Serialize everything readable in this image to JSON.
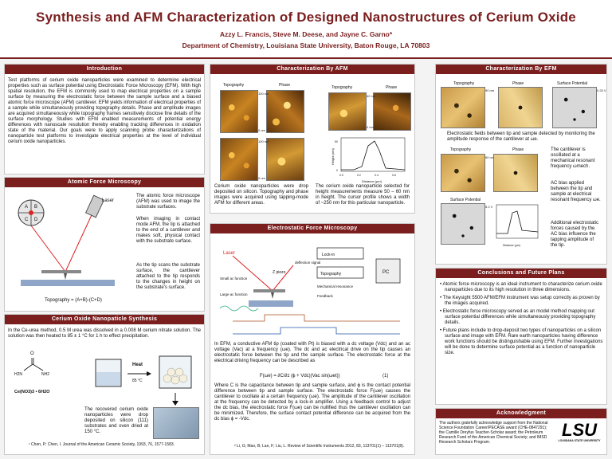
{
  "header": {
    "title": "Synthesis and AFM Characterization of Designed Nanostructures of Cerium Oxide",
    "authors": "Azzy L. Francis, Steve M. Deese, and Jayne C. Garno*",
    "affiliation": "Department of Chemistry, Louisiana State University, Baton Rouge, LA 70803"
  },
  "intro": {
    "heading": "Introduction",
    "body": "Test platforms of cerium oxide nanoparticles were examined to determine electrical properties such as surface potential using Electrostatic Force Microscopy (EFM). With high spatial resolution, the EFM is commonly used to map electrical properties on a sample surface by measuring the electrostatic force between the sample surface and a biased atomic force microscope (AFM) cantilever. EFM yields information of electrical properties of a sample while simultaneously providing topography details. Phase and amplitude images are acquired simultaneously while topography frames sensitively disclose fine details of the surface morphology. Studies with EFM enabled measurements of potential energy differences with nanoscale resolution thereby enabling tracking differences in oxidation state of the material. Our goals were to apply scanning probe characterizations of nanoparticle test platforms to investigate electrical properties at the level of individual cerium oxide nanoparticles."
  },
  "afm": {
    "heading": "Atomic Force Microscopy",
    "p1": "The atomic force microscope (AFM) was used to image the substrate surfaces.",
    "p2": "When imaging in contact mode AFM, the tip is attached to the end of a cantilever and makes soft, physical contact with the substrate surface.",
    "p3": "As the tip scans the substrate surface, the cantilever attached to the tip responds to the changes in height on the substrate's surface.",
    "formula": "Topography = (A+B)-(C+D)",
    "laser_label": "Laser",
    "quad_labels": [
      "A",
      "B",
      "C",
      "D"
    ]
  },
  "synthesis": {
    "heading": "Cerium Oxide Nanopaticle Synthesis",
    "body": "In the Ce-urea method, 0.5 M urea was dissolved in a 0.008 M cerium nitrate solution. The solution was then heated to 85 ± 1 °C for 1 h to effect precipitation.",
    "reagent1": "Ce(NO3)3 • 6H2O",
    "urea_o": "O",
    "urea_n1": "H2N",
    "urea_n2": "NH2",
    "heat_label": "Heat",
    "temp_label": "85 °C",
    "recovered": "The recovered cerium oxide nanoparticles were drop deposited on silicon (111) substrates and oven dried at 150 °C.",
    "citation": "¹ Chen, P; Chen, I. Journal of the American Ceramic Society, 1993, 76, 1577-1583."
  },
  "char_afm": {
    "heading": "Characterization By AFM",
    "labels": [
      "Topography",
      "Phase",
      "Topography",
      "Phase"
    ],
    "scale1": "100 nm",
    "scale2": "0 nm",
    "scale3": "42 nm",
    "scale4": "0 nm",
    "caption_left": "Cerium oxide nanoparticles were drop deposited on silicon. Topography and phase images were acquired using tapping-mode AFM for different areas.",
    "caption_right": "The cerium oxide nanoparticle selected for height measurements measure 50 – 60 nm in height. The cursor profile shows a width of ~250 nm for this particular nanoparticle.",
    "ylabel": "Height (nm)",
    "xlabel": "Distance (μm)",
    "xticks": [
      "0.0",
      "0.2",
      "0.4",
      "0.6"
    ],
    "yticks": [
      "0",
      "50"
    ]
  },
  "efm_diagram": {
    "heading": "Electrostatic Force Microscopy",
    "labels": [
      "Laser",
      "deflection signal",
      "Small ac function",
      "Large ac function",
      "Lock-in",
      "Topography",
      "Z piezo",
      "Mechanical resonance",
      "Feedback",
      "PC"
    ],
    "body": "In EFM, a conductive AFM tip (coated with Pt) is biased with a dc voltage (Vdc) and an ac voltage (Vac) at a frequency (ωe). The dc and ac electrical drive on the tip causes an electrostatic force between the tip and the sample surface. The electrostatic force at the electrical driving frequency can be described as",
    "equation": "F(ωe) = ∂C/∂z (ϕ + Vdc)(Vac sin(ωet))",
    "eqnum": "(1)",
    "body2": "Where C is the capacitance between tip and sample surface, and ϕ is the contact potential difference between tip and sample surface. The electrostatic force F(ωe) causes the cantilever to oscillate at a certain frequency (ωe). The amplitude of the cantilever oscillation at the frequency can be detected by a lock-in amplifier. Using a feedback control to adjust the dc bias, the electrostatic force F(ωe) can be nullified thus the cantilever oscillation can be minimized. Therefore, the surface contact potential difference can be acquired from the dc bias ϕ = -Vdc.",
    "citation": "² Li, G; Mao, B; Lan, F; Liu, L. Review of Scientific Instruments 2012, 83, 113701(1) – 113701(8)."
  },
  "char_efm": {
    "heading": "Characterization By EFM",
    "labels": [
      "Topography",
      "Phase",
      "Surface Potential"
    ],
    "scale1": "90 nm",
    "scale2": "0.25 V",
    "caption": "Electrostatic fields between tip and sample detected by monitoring the amplitude response of the cantilever at ωe.",
    "labels2": [
      "Topography",
      "Phase",
      "Surface Potential"
    ],
    "scale3": "60 nm",
    "scale4": "5.2 V",
    "side1": "The cantilever is oscillated at a mechanical resonant frequency ωmech.",
    "side2": "AC bias applied between the tip and sample at electrical resonant frequency ωe.",
    "side3": "Additional electrostatic forces caused by the AC bias influence the tapping amplitude of the tip.",
    "xlabel": "Distance (μm)"
  },
  "conclusions": {
    "heading": "Conclusions and Future Plans",
    "items": [
      "Atomic force microscopy is an ideal instrument to characterize cerium oxide nanoparticles due to its high resolution in three dimensions.",
      "The Keysight 5500 AFM/EFM instrument was setup correctly as proven by the images acquired.",
      "Electrostatic force microscopy served as an model method mapping out surface potential differences while simultaneously providing topography details.",
      "Future plans include to drop-deposit two types of nanoparticles on a silicon surface and image with EFM. Rare earth nanoparticles having difference work functions should be distinguishable using EFM. Further investigations will be done to determine surface potential as a function of nanoparticle size."
    ]
  },
  "ack": {
    "heading": "Acknowledgment",
    "body": "The authors gratefully acknowledge support from the National Science Foundation Career/PECASE award (CHE-0847291); the Camille Dreyfus Teacher-Scholar award; the Petroleum Research Fund of the American Chemical Society; and IMSD Research Scholars Program.",
    "logo": "LSU",
    "logo_sub": "LOUISIANA STATE UNIVERSITY"
  }
}
